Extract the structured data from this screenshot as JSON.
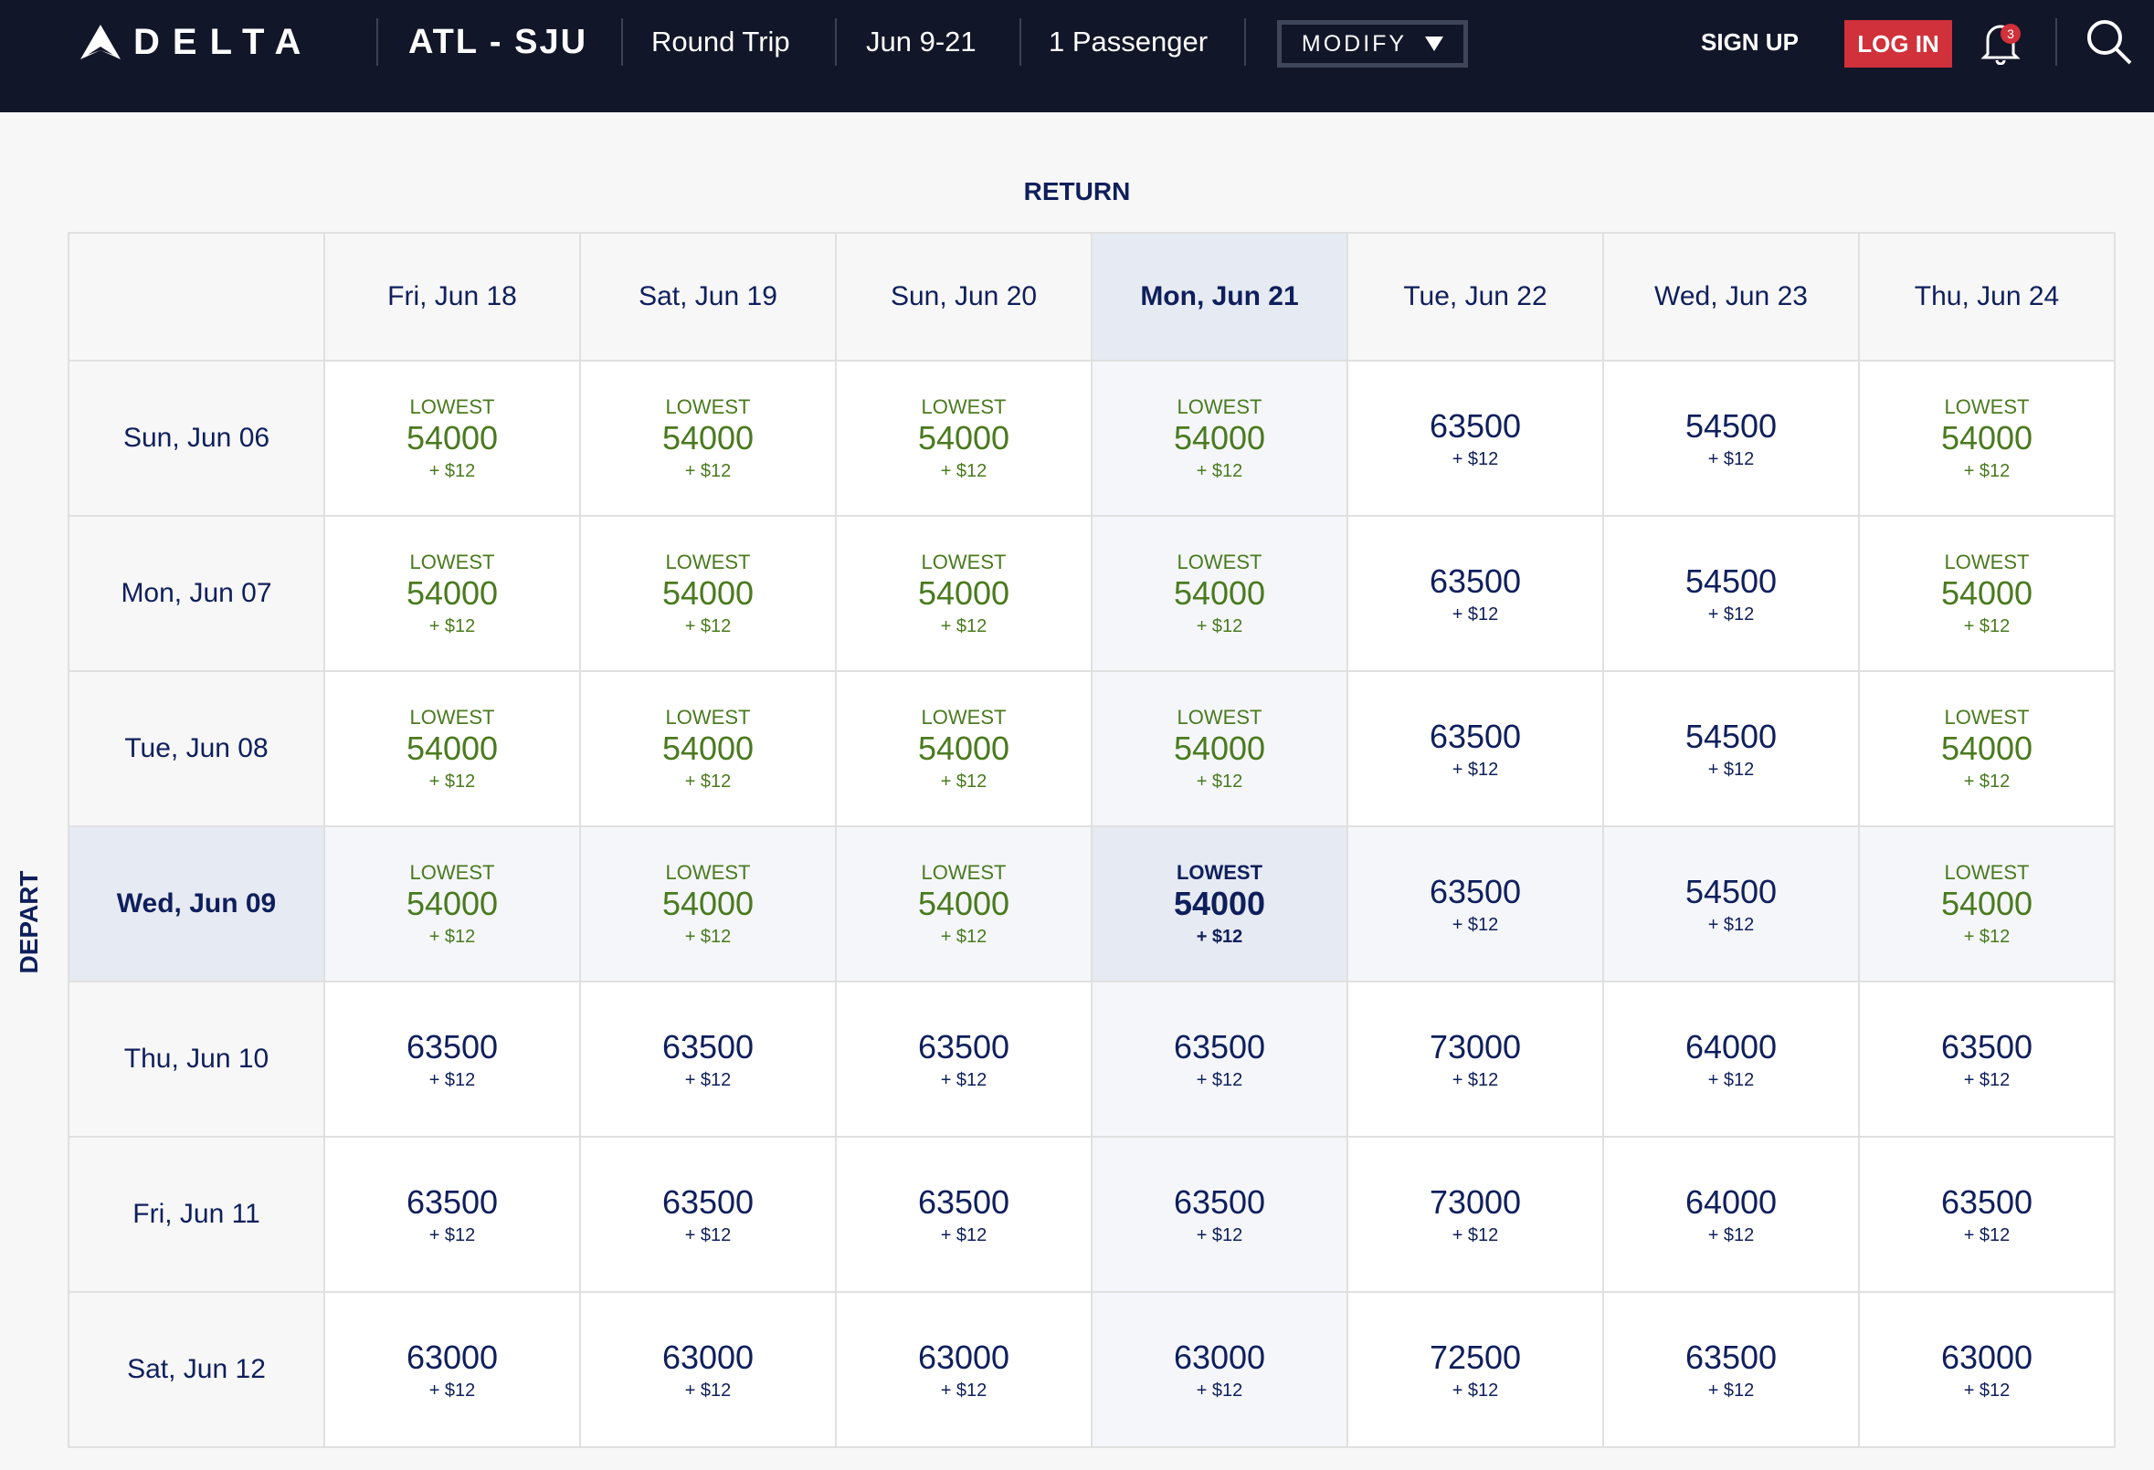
{
  "header": {
    "brand": "DELTA",
    "route": "ATL - SJU",
    "trip_type": "Round Trip",
    "dates": "Jun 9-21",
    "passengers": "1 Passenger",
    "modify": "MODIFY",
    "sign_up": "SIGN UP",
    "log_in": "LOG IN",
    "notification_count": "3",
    "icons": [
      "delta-logo",
      "chevron-down",
      "bell",
      "search"
    ]
  },
  "grid": {
    "return_label": "RETURN",
    "depart_label": "DEPART",
    "return_dates": [
      "Fri, Jun 18",
      "Sat, Jun 19",
      "Sun, Jun 20",
      "Mon, Jun 21",
      "Tue, Jun 22",
      "Wed, Jun 23",
      "Thu, Jun 24"
    ],
    "depart_dates": [
      "Sun, Jun 06",
      "Mon, Jun 07",
      "Tue, Jun 08",
      "Wed, Jun 09",
      "Thu, Jun 10",
      "Fri, Jun 11",
      "Sat, Jun 12"
    ],
    "selected_return": "Mon, Jun 21",
    "selected_depart": "Wed, Jun 09",
    "lowest_label": "LOWEST",
    "fee": "+ $12",
    "lowest_value": "54000",
    "miles": [
      [
        "54000",
        "54000",
        "54000",
        "54000",
        "63500",
        "54500",
        "54000"
      ],
      [
        "54000",
        "54000",
        "54000",
        "54000",
        "63500",
        "54500",
        "54000"
      ],
      [
        "54000",
        "54000",
        "54000",
        "54000",
        "63500",
        "54500",
        "54000"
      ],
      [
        "54000",
        "54000",
        "54000",
        "54000",
        "63500",
        "54500",
        "54000"
      ],
      [
        "63500",
        "63500",
        "63500",
        "63500",
        "73000",
        "64000",
        "63500"
      ],
      [
        "63500",
        "63500",
        "63500",
        "63500",
        "73000",
        "64000",
        "63500"
      ],
      [
        "63000",
        "63000",
        "63000",
        "63000",
        "72500",
        "63500",
        "63000"
      ]
    ]
  },
  "colors": {
    "navy": "#0f1f5c",
    "header_bg": "#121629",
    "lowest_green": "#4a7a1e",
    "login_red": "#d0313a",
    "selected_bg": "#e6eaf2"
  }
}
